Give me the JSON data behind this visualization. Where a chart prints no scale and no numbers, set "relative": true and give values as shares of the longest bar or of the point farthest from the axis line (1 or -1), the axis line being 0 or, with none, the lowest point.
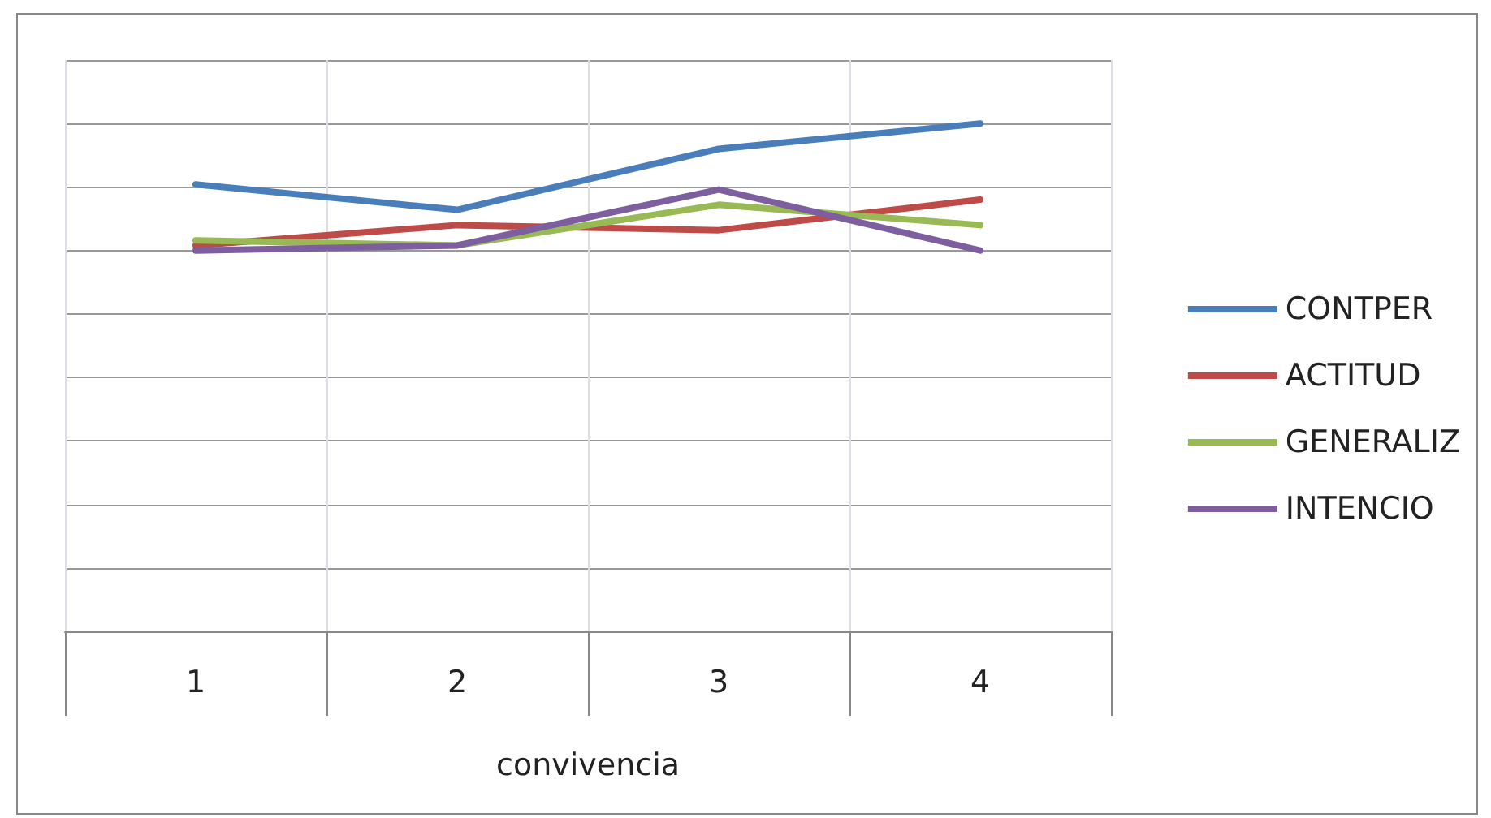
{
  "chart_data": {
    "type": "line",
    "relative": true,
    "xlabel": "convivencia",
    "categories": [
      "1",
      "2",
      "3",
      "4"
    ],
    "series": [
      {
        "name": "CONTPER",
        "color": "#4a7ebb",
        "values": [
          0.88,
          0.83,
          0.95,
          1
        ]
      },
      {
        "name": "ACTITUD",
        "color": "#be4b48",
        "values": [
          0.76,
          0.8,
          0.79,
          0.85
        ]
      },
      {
        "name": "GENERALIZ",
        "color": "#98b954",
        "values": [
          0.77,
          0.76,
          0.84,
          0.8
        ]
      },
      {
        "name": "INTENCIO",
        "color": "#7d5fa0",
        "values": [
          0.75,
          0.76,
          0.87,
          0.75
        ]
      }
    ],
    "grid": true,
    "legend": "right",
    "marker": "none",
    "line_style": "solid"
  }
}
